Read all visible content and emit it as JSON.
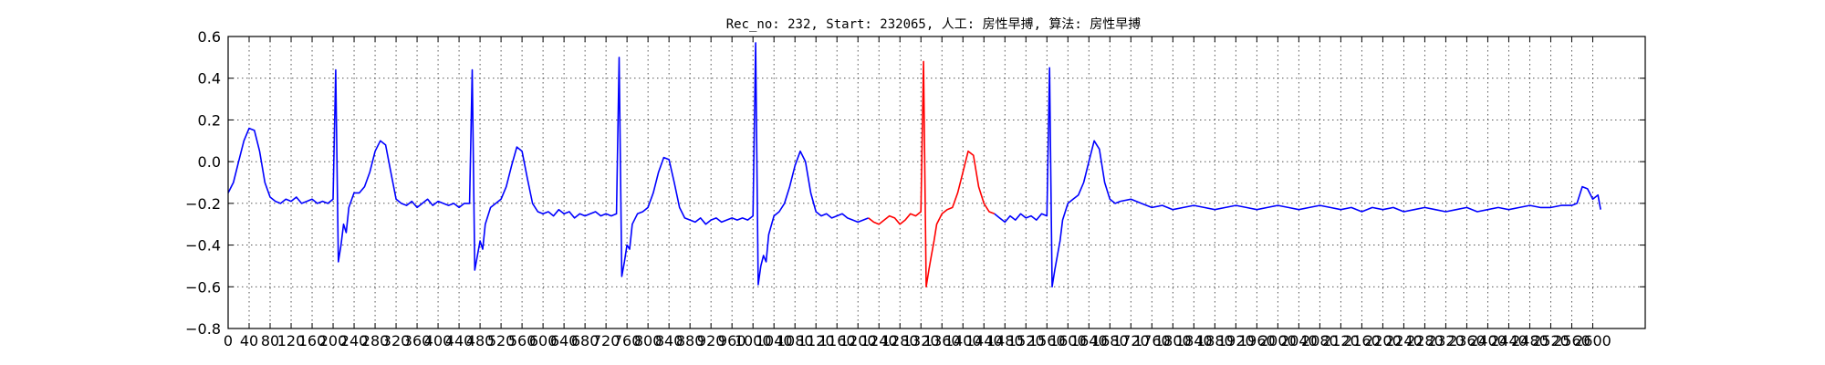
{
  "chart_data": {
    "type": "line",
    "title": "Rec_no: 232, Start: 232065, 人工: 房性早搏, 算法: 房性早搏",
    "xlabel": "",
    "ylabel": "",
    "xlim": [
      0,
      2700
    ],
    "ylim": [
      -0.8,
      0.6
    ],
    "grid": true,
    "yticks": [
      0.6,
      0.4,
      0.2,
      0.0,
      -0.2,
      -0.4,
      -0.6,
      -0.8
    ],
    "ytick_labels": [
      "0.6",
      "0.4",
      "0.2",
      "0.0",
      "−0.2",
      "−0.4",
      "−0.6",
      "−0.8"
    ],
    "xticks": [
      0,
      40,
      80,
      120,
      160,
      200,
      240,
      280,
      320,
      360,
      400,
      440,
      480,
      520,
      560,
      600,
      640,
      680,
      720,
      760,
      800,
      840,
      880,
      920,
      960,
      1000,
      1040,
      1080,
      1120,
      1160,
      1200,
      1240,
      1280,
      1320,
      1360,
      1400,
      1440,
      1480,
      1520,
      1560,
      1600,
      1640,
      1680,
      1720,
      1760,
      1800,
      1840,
      1880,
      1920,
      1960,
      2000,
      2040,
      2080,
      2120,
      2160,
      2200,
      2240,
      2280,
      2320,
      2360,
      2400,
      2440,
      2480,
      2520,
      2560,
      2600
    ],
    "xtick_labels": [
      "0",
      "40",
      "80",
      "120",
      "160",
      "200",
      "240",
      "280",
      "320",
      "360",
      "400",
      "440",
      "480",
      "520",
      "560",
      "600",
      "640",
      "680",
      "720",
      "760",
      "800",
      "840",
      "880",
      "920",
      "960",
      "1000",
      "1040",
      "1080",
      "1120",
      "1160",
      "1200",
      "1240",
      "1280",
      "1320",
      "1360",
      "1400",
      "1440",
      "1480",
      "1520",
      "1560",
      "1600",
      "1640",
      "1680",
      "1720",
      "1760",
      "1800",
      "1840",
      "1880",
      "1920",
      "1960",
      "2000",
      "2040",
      "2080",
      "2120",
      "2160",
      "2200",
      "2240",
      "2280",
      "2320",
      "2360",
      "2400",
      "2440",
      "2480",
      "2520",
      "2560",
      "2600"
    ],
    "series": [
      {
        "color": "#0000ff",
        "x": [
          0,
          10,
          20,
          30,
          40,
          50,
          60,
          70,
          80,
          90,
          100,
          110,
          120,
          130,
          140,
          150,
          160,
          170,
          180,
          190,
          200,
          205,
          210,
          215,
          220,
          225,
          230,
          240,
          250,
          260,
          270,
          280,
          290,
          300,
          310,
          320,
          330,
          340,
          350,
          360,
          370,
          380,
          390,
          400,
          410,
          420,
          430,
          440,
          450,
          460,
          465,
          470,
          475,
          480,
          485,
          490,
          500,
          510,
          520,
          530,
          540,
          550,
          560,
          570,
          580,
          590,
          600,
          610,
          620,
          630,
          640,
          650,
          660,
          670,
          680,
          690,
          700,
          710,
          720,
          730,
          740,
          745,
          750,
          755,
          760,
          765,
          770,
          780,
          790,
          800,
          810,
          820,
          830,
          840,
          850,
          860,
          870,
          880,
          890,
          900,
          910,
          920,
          930,
          940,
          950,
          960,
          970,
          980,
          990,
          1000,
          1005,
          1010,
          1015,
          1020,
          1025,
          1030,
          1040,
          1050,
          1060,
          1070,
          1080,
          1090,
          1100,
          1110,
          1120,
          1130,
          1140,
          1150,
          1160,
          1170,
          1180,
          1190,
          1200,
          1210,
          1220
        ],
        "y": [
          -0.15,
          -0.1,
          0.0,
          0.1,
          0.16,
          0.15,
          0.05,
          -0.1,
          -0.17,
          -0.19,
          -0.2,
          -0.18,
          -0.19,
          -0.17,
          -0.2,
          -0.19,
          -0.18,
          -0.2,
          -0.19,
          -0.2,
          -0.18,
          0.44,
          -0.48,
          -0.4,
          -0.3,
          -0.34,
          -0.22,
          -0.15,
          -0.15,
          -0.12,
          -0.05,
          0.05,
          0.1,
          0.08,
          -0.05,
          -0.18,
          -0.2,
          -0.21,
          -0.19,
          -0.22,
          -0.2,
          -0.18,
          -0.21,
          -0.19,
          -0.2,
          -0.21,
          -0.2,
          -0.22,
          -0.2,
          -0.2,
          0.44,
          -0.52,
          -0.45,
          -0.38,
          -0.42,
          -0.3,
          -0.22,
          -0.2,
          -0.18,
          -0.12,
          -0.02,
          0.07,
          0.05,
          -0.08,
          -0.2,
          -0.24,
          -0.25,
          -0.24,
          -0.26,
          -0.23,
          -0.25,
          -0.24,
          -0.27,
          -0.25,
          -0.26,
          -0.25,
          -0.24,
          -0.26,
          -0.25,
          -0.26,
          -0.25,
          0.5,
          -0.55,
          -0.48,
          -0.4,
          -0.42,
          -0.3,
          -0.25,
          -0.24,
          -0.22,
          -0.15,
          -0.05,
          0.02,
          0.01,
          -0.1,
          -0.22,
          -0.27,
          -0.28,
          -0.29,
          -0.27,
          -0.3,
          -0.28,
          -0.27,
          -0.29,
          -0.28,
          -0.27,
          -0.28,
          -0.27,
          -0.28,
          -0.26,
          0.57,
          -0.59,
          -0.5,
          -0.45,
          -0.48,
          -0.35,
          -0.26,
          -0.24,
          -0.2,
          -0.12,
          -0.02,
          0.05,
          0.0,
          -0.15,
          -0.24,
          -0.26,
          -0.25,
          -0.27,
          -0.26,
          -0.25,
          -0.27,
          -0.28,
          -0.29,
          -0.28,
          -0.27
        ]
      },
      {
        "color": "#ff0000",
        "x": [
          1220,
          1230,
          1240,
          1250,
          1260,
          1270,
          1280,
          1290,
          1300,
          1310,
          1320,
          1325,
          1330,
          1335,
          1340,
          1345,
          1350,
          1360,
          1370,
          1380,
          1390,
          1400,
          1410,
          1420,
          1430,
          1440,
          1450,
          1460
        ],
        "y": [
          -0.27,
          -0.29,
          -0.3,
          -0.28,
          -0.26,
          -0.27,
          -0.3,
          -0.28,
          -0.25,
          -0.26,
          -0.24,
          0.48,
          -0.6,
          -0.52,
          -0.45,
          -0.38,
          -0.3,
          -0.25,
          -0.23,
          -0.22,
          -0.15,
          -0.05,
          0.05,
          0.03,
          -0.12,
          -0.2,
          -0.24,
          -0.25
        ]
      },
      {
        "color": "#0000ff",
        "x": [
          1460,
          1470,
          1480,
          1490,
          1500,
          1510,
          1520,
          1530,
          1540,
          1550,
          1560,
          1565,
          1570,
          1575,
          1580,
          1585,
          1590,
          1600,
          1610,
          1620,
          1630,
          1640,
          1650,
          1660,
          1670,
          1680,
          1690,
          1700,
          1720,
          1740,
          1760,
          1780,
          1800,
          1820,
          1840,
          1860,
          1880,
          1900,
          1920,
          1940,
          1960,
          1980,
          2000,
          2020,
          2040,
          2060,
          2080,
          2100,
          2120,
          2140,
          2160,
          2180,
          2200,
          2220,
          2240,
          2260,
          2280,
          2300,
          2320,
          2340,
          2360,
          2380,
          2400,
          2420,
          2440,
          2460,
          2480,
          2500,
          2520,
          2540,
          2560,
          2570,
          2580,
          2590,
          2600,
          2610,
          2615
        ],
        "y": [
          -0.25,
          -0.27,
          -0.29,
          -0.26,
          -0.28,
          -0.25,
          -0.27,
          -0.26,
          -0.28,
          -0.25,
          -0.26,
          0.45,
          -0.6,
          -0.52,
          -0.45,
          -0.38,
          -0.28,
          -0.2,
          -0.18,
          -0.16,
          -0.1,
          0.0,
          0.1,
          0.06,
          -0.1,
          -0.18,
          -0.2,
          -0.19,
          -0.18,
          -0.2,
          -0.22,
          -0.21,
          -0.23,
          -0.22,
          -0.21,
          -0.22,
          -0.23,
          -0.22,
          -0.21,
          -0.22,
          -0.23,
          -0.22,
          -0.21,
          -0.22,
          -0.23,
          -0.22,
          -0.21,
          -0.22,
          -0.23,
          -0.22,
          -0.24,
          -0.22,
          -0.23,
          -0.22,
          -0.24,
          -0.23,
          -0.22,
          -0.23,
          -0.24,
          -0.23,
          -0.22,
          -0.24,
          -0.23,
          -0.22,
          -0.23,
          -0.22,
          -0.21,
          -0.22,
          -0.22,
          -0.21,
          -0.21,
          -0.2,
          -0.12,
          -0.13,
          -0.18,
          -0.16,
          -0.23
        ]
      }
    ]
  }
}
